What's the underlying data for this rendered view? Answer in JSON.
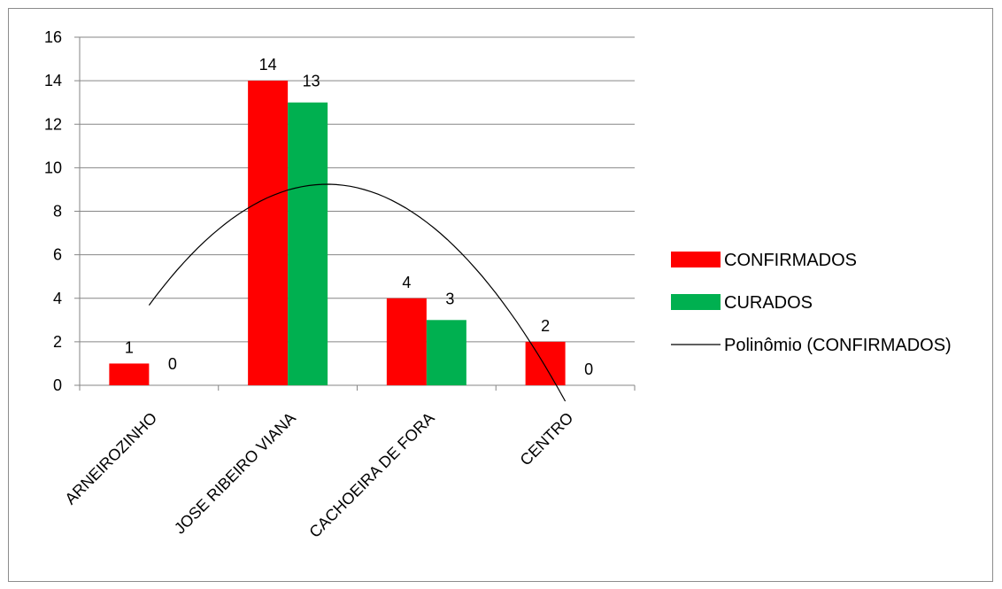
{
  "chart_data": {
    "type": "bar",
    "title": "",
    "xlabel": "",
    "ylabel": "",
    "ylim": [
      0,
      16
    ],
    "yticks": [
      0,
      2,
      4,
      6,
      8,
      10,
      12,
      14,
      16
    ],
    "grid": true,
    "categories": [
      "ARNEIROZINHO",
      "JOSE RIBEIRO VIANA",
      "CACHOEIRA DE FORA",
      "CENTRO"
    ],
    "series": [
      {
        "name": "CONFIRMADOS",
        "values": [
          1,
          14,
          4,
          2
        ],
        "color": "#ff0000"
      },
      {
        "name": "CURADOS",
        "values": [
          0,
          13,
          3,
          0
        ],
        "color": "#00b050"
      }
    ],
    "trendline": {
      "name": "Polinômio (CONFIRMADOS)",
      "type": "polynomial",
      "order": 2,
      "x": [
        1,
        1.5,
        2,
        2.5,
        3,
        3.5,
        4
      ],
      "y": [
        2.5,
        8.5,
        9.9,
        9.0,
        6.6,
        3.0,
        0.4
      ],
      "color": "#000000"
    },
    "legend_position": "right",
    "data_labels": true
  }
}
